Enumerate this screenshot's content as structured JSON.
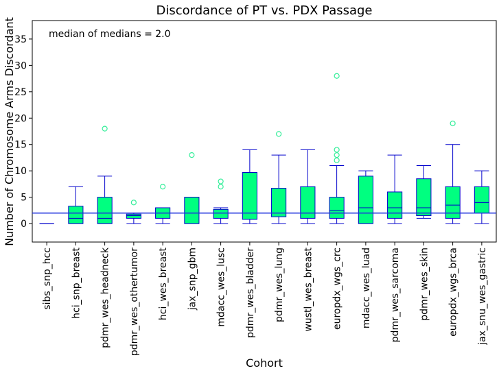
{
  "chart_data": {
    "type": "box",
    "title": "Discordance of PT vs. PDX Passage",
    "xlabel": "Cohort",
    "ylabel": "Number of Chromosome Arms Discordant",
    "ylim": [
      -3.5,
      38.5
    ],
    "yticks": [
      0,
      5,
      10,
      15,
      20,
      25,
      30,
      35
    ],
    "annotation": "median of medians = 2.0",
    "reference_line": 2.0,
    "grid": false,
    "colors": {
      "box_fill": "#00ff80",
      "box_edge": "#0000cc",
      "reference": "#2233dd",
      "outlier": "#33ee99"
    },
    "categories": [
      "sibs_snp_hcc",
      "hci_snp_breast",
      "pdmr_wes_headneck",
      "pdmr_wes_othertumor",
      "hci_wes_breast",
      "jax_snp_gbm",
      "mdacc_wes_lusc",
      "pdmr_wes_bladder",
      "pdmr_wes_lung",
      "wustl_wes_breast",
      "europdx_wgs_crc",
      "mdacc_wes_luad",
      "pdmr_wes_sarcoma",
      "pdmr_wes_skin",
      "europdx_wgs_brca",
      "jax_snu_wes_gastric"
    ],
    "boxes": [
      {
        "whislo": 0,
        "q1": 0,
        "med": 0,
        "q3": 0,
        "whishi": 0,
        "fliers": []
      },
      {
        "whislo": 0,
        "q1": 0,
        "med": 1,
        "q3": 3.3,
        "whishi": 7,
        "fliers": []
      },
      {
        "whislo": 0,
        "q1": 0,
        "med": 1,
        "q3": 5,
        "whishi": 9,
        "fliers": [
          18
        ]
      },
      {
        "whislo": 0,
        "q1": 1,
        "med": 1.5,
        "q3": 1.8,
        "whishi": 2,
        "fliers": [
          4
        ]
      },
      {
        "whislo": 0,
        "q1": 1,
        "med": 2,
        "q3": 3,
        "whishi": 3,
        "fliers": [
          7
        ]
      },
      {
        "whislo": 0,
        "q1": 0,
        "med": 2,
        "q3": 5,
        "whishi": 5,
        "fliers": [
          13
        ]
      },
      {
        "whislo": 0,
        "q1": 1,
        "med": 2,
        "q3": 2.7,
        "whishi": 3,
        "fliers": [
          7,
          8
        ]
      },
      {
        "whislo": 0,
        "q1": 0.8,
        "med": 2,
        "q3": 9.7,
        "whishi": 14,
        "fliers": []
      },
      {
        "whislo": 0,
        "q1": 1.3,
        "med": 2,
        "q3": 6.7,
        "whishi": 13,
        "fliers": [
          17
        ]
      },
      {
        "whislo": 0,
        "q1": 1,
        "med": 2,
        "q3": 7,
        "whishi": 14,
        "fliers": []
      },
      {
        "whislo": 0,
        "q1": 1,
        "med": 2.5,
        "q3": 5,
        "whishi": 11,
        "fliers": [
          12,
          13,
          14,
          28
        ]
      },
      {
        "whislo": 0,
        "q1": 0,
        "med": 3,
        "q3": 9,
        "whishi": 10,
        "fliers": []
      },
      {
        "whislo": 0,
        "q1": 1,
        "med": 3,
        "q3": 6,
        "whishi": 13,
        "fliers": []
      },
      {
        "whislo": 1,
        "q1": 1.5,
        "med": 3,
        "q3": 8.5,
        "whishi": 11,
        "fliers": []
      },
      {
        "whislo": 0,
        "q1": 1,
        "med": 3.5,
        "q3": 7,
        "whishi": 15,
        "fliers": [
          19
        ]
      },
      {
        "whislo": 0,
        "q1": 2,
        "med": 4,
        "q3": 7,
        "whishi": 10,
        "fliers": []
      }
    ]
  }
}
